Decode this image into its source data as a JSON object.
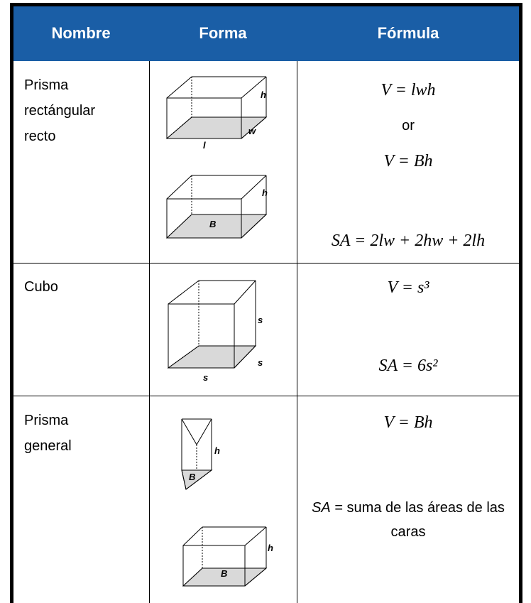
{
  "table": {
    "headers": [
      "Nombre",
      "Forma",
      "Fórmula"
    ],
    "rows": [
      {
        "name_lines": [
          "Prisma",
          "rectángular",
          "recto"
        ],
        "shapes": [
          {
            "labels": [
              "h",
              "w",
              "l"
            ]
          },
          {
            "labels": [
              "h",
              "B"
            ]
          }
        ],
        "formulas": [
          "V = lwh",
          "or",
          "V = Bh",
          "SA = 2lw + 2hw + 2lh"
        ]
      },
      {
        "name_lines": [
          "Cubo"
        ],
        "shapes": [
          {
            "labels": [
              "s",
              "s",
              "s"
            ]
          }
        ],
        "formulas": [
          "V = s³",
          "SA = 6s²"
        ]
      },
      {
        "name_lines": [
          "Prisma",
          "general"
        ],
        "shapes": [
          {
            "labels": [
              "h",
              "B"
            ]
          },
          {
            "labels": [
              "h",
              "B"
            ]
          }
        ],
        "formulas": [
          "V = Bh"
        ],
        "note": {
          "sa": "SA",
          "text": " = suma de las áreas de las caras"
        }
      }
    ]
  }
}
